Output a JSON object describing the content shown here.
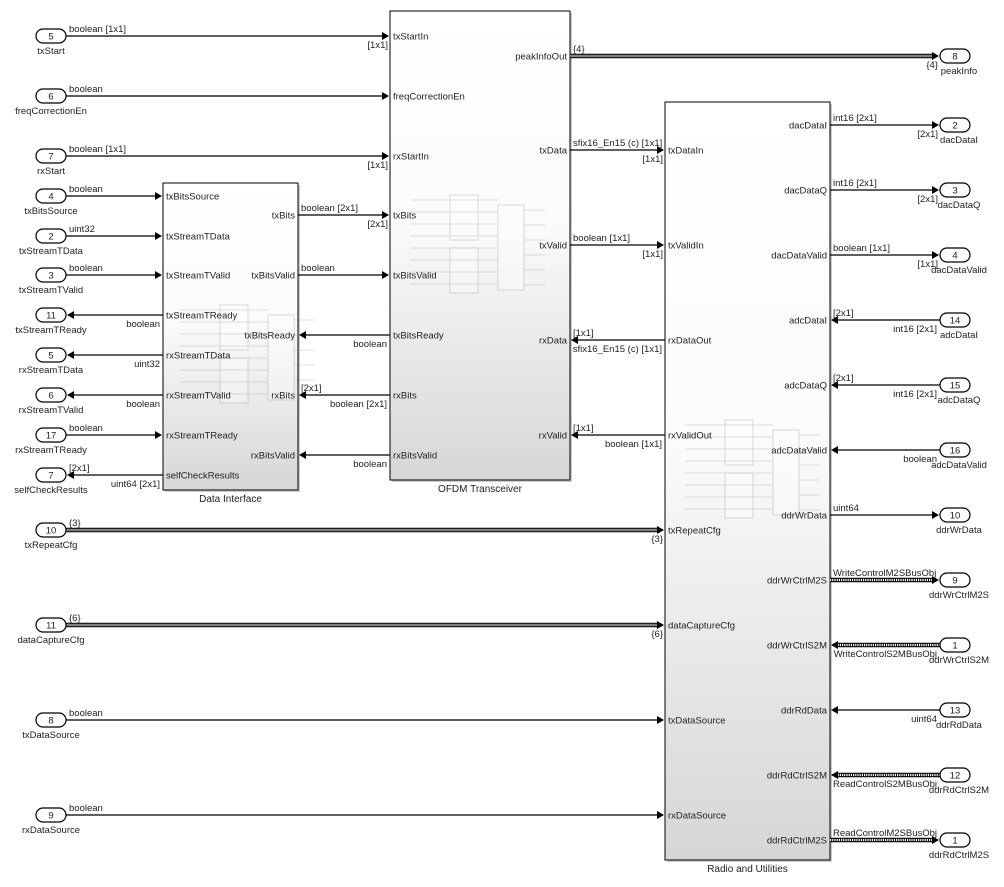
{
  "blocks": [
    {
      "title": "Data Interface",
      "ports": [
        "txBitsSource",
        "txStreamTData",
        "txStreamTValid",
        "txStreamTReady",
        "rxStreamTData",
        "rxStreamTValid",
        "rxStreamTReady",
        "selfCheckResults",
        "txBits",
        "txBitsValid",
        "txBitsReady",
        "rxBits",
        "rxBitsValid"
      ]
    },
    {
      "title": "OFDM Transceiver",
      "ports": [
        "txStartIn",
        "freqCorrectionEn",
        "rxStartIn",
        "txBits",
        "txBitsValid",
        "txBitsReady",
        "rxBits",
        "rxBitsValid",
        "peakInfoOut",
        "txData",
        "txValid",
        "rxData",
        "rxValid"
      ]
    },
    {
      "title": "Radio and Utilities",
      "ports": [
        "txDataIn",
        "txValidIn",
        "rxDataOut",
        "rxValidOut",
        "txRepeatCfg",
        "dataCaptureCfg",
        "txDataSource",
        "rxDataSource",
        "dacDataI",
        "dacDataQ",
        "dacDataValid",
        "adcDataI",
        "adcDataQ",
        "adcDataValid",
        "ddrWrData",
        "ddrWrCtrlM2S",
        "ddrWrCtrlS2M",
        "ddrRdData",
        "ddrRdCtrlS2M",
        "ddrRdCtrlM2S"
      ]
    }
  ],
  "left_ports": [
    {
      "number": "5",
      "name": "txStart"
    },
    {
      "number": "6",
      "name": "freqCorrectionEn"
    },
    {
      "number": "7",
      "name": "rxStart"
    },
    {
      "number": "4",
      "name": "txBitsSource"
    },
    {
      "number": "2",
      "name": "txStreamTData"
    },
    {
      "number": "3",
      "name": "txStreamTValid"
    },
    {
      "number": "11",
      "name": "txStreamTReady"
    },
    {
      "number": "5",
      "name": "rxStreamTData"
    },
    {
      "number": "6",
      "name": "rxStreamTValid"
    },
    {
      "number": "17",
      "name": "rxStreamTReady"
    },
    {
      "number": "7",
      "name": "selfCheckResults"
    },
    {
      "number": "10",
      "name": "txRepeatCfg"
    },
    {
      "number": "11",
      "name": "dataCaptureCfg"
    },
    {
      "number": "8",
      "name": "txDataSource"
    },
    {
      "number": "9",
      "name": "rxDataSource"
    }
  ],
  "right_ports": [
    {
      "number": "8",
      "name": "peakInfo"
    },
    {
      "number": "2",
      "name": "dacDataI"
    },
    {
      "number": "3",
      "name": "dacDataQ"
    },
    {
      "number": "4",
      "name": "dacDataValid"
    },
    {
      "number": "14",
      "name": "adcDataI"
    },
    {
      "number": "15",
      "name": "adcDataQ"
    },
    {
      "number": "16",
      "name": "adcDataValid"
    },
    {
      "number": "10",
      "name": "ddrWrData"
    },
    {
      "number": "9",
      "name": "ddrWrCtrlM2S"
    },
    {
      "number": "1",
      "name": "ddrWrCtrlS2M"
    },
    {
      "number": "13",
      "name": "ddrRdData"
    },
    {
      "number": "12",
      "name": "ddrRdCtrlS2M"
    },
    {
      "number": "1",
      "name": "ddrRdCtrlM2S"
    }
  ],
  "signals": [
    {
      "type": "boolean [1x1]",
      "dim": "[1x1]"
    },
    {
      "type": "boolean",
      "dim": ""
    },
    {
      "type": "boolean [1x1]",
      "dim": "[1x1]"
    },
    {
      "type": "boolean",
      "dim": ""
    },
    {
      "type": "uint32",
      "dim": ""
    },
    {
      "type": "boolean",
      "dim": ""
    },
    {
      "type": "boolean",
      "dim": ""
    },
    {
      "type": "uint32",
      "dim": ""
    },
    {
      "type": "boolean",
      "dim": ""
    },
    {
      "type": "boolean",
      "dim": ""
    },
    {
      "type": "uint64 [2x1]",
      "dim": "[2x1]"
    },
    {
      "type": "boolean [2x1]",
      "dim": "[2x1]"
    },
    {
      "type": "boolean",
      "dim": ""
    },
    {
      "type": "boolean",
      "dim": ""
    },
    {
      "type": "boolean [2x1]",
      "dim": "[2x1]"
    },
    {
      "type": "boolean",
      "dim": ""
    },
    {
      "type": "{4}",
      "dim": "{4}"
    },
    {
      "type": "sfix16_En15 (c) [1x1]",
      "dim": "[1x1]"
    },
    {
      "type": "boolean [1x1]",
      "dim": "[1x1]"
    },
    {
      "type": "sfix16_En15 (c) [1x1]",
      "dim": "[1x1]"
    },
    {
      "type": "boolean [1x1]",
      "dim": "[1x1]"
    },
    {
      "type": "{3}",
      "dim": "{3}"
    },
    {
      "type": "{6}",
      "dim": "{6}"
    },
    {
      "type": "boolean",
      "dim": ""
    },
    {
      "type": "boolean",
      "dim": ""
    },
    {
      "type": "int16 [2x1]",
      "dim": "[2x1]"
    },
    {
      "type": "int16 [2x1]",
      "dim": "[2x1]"
    },
    {
      "type": "boolean [1x1]",
      "dim": "[1x1]"
    },
    {
      "type": "int16 [2x1]",
      "dim": "[2x1]"
    },
    {
      "type": "int16 [2x1]",
      "dim": "[2x1]"
    },
    {
      "type": "boolean",
      "dim": ""
    },
    {
      "type": "uint64",
      "dim": ""
    },
    {
      "type": "WriteControlM2SBusObj",
      "dim": ""
    },
    {
      "type": "WriteControlS2MBusObj",
      "dim": ""
    },
    {
      "type": "uint64",
      "dim": ""
    },
    {
      "type": "ReadControlS2MBusObj",
      "dim": ""
    },
    {
      "type": "ReadControlM2SBusObj",
      "dim": ""
    }
  ],
  "colors": {
    "line": "#000000",
    "block_top": "#ffffff",
    "block_bottom": "#d6d6d6"
  }
}
